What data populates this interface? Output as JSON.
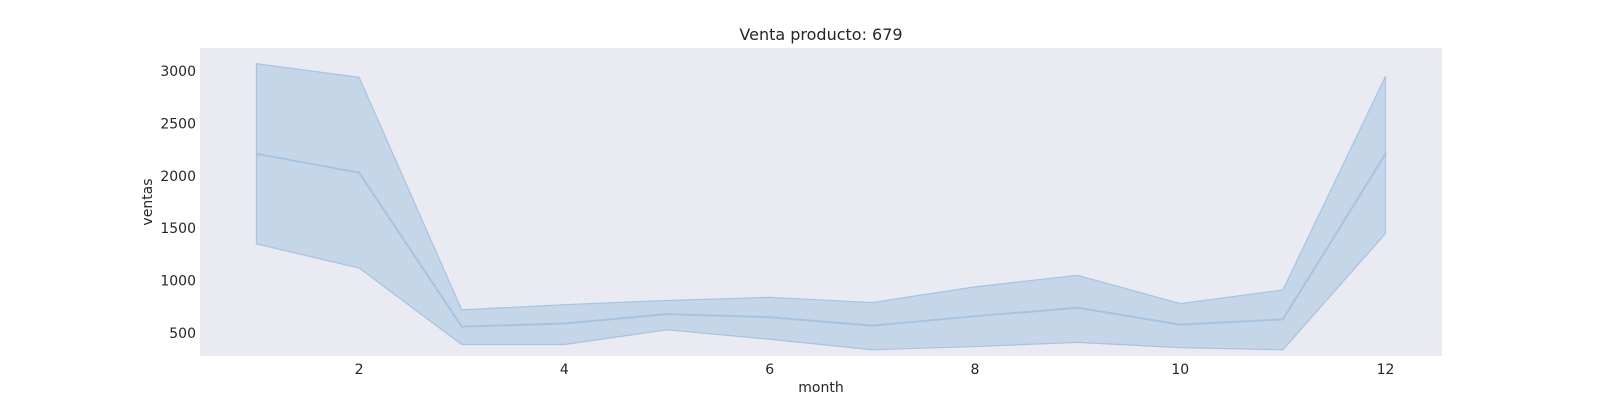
{
  "chart_data": {
    "type": "line",
    "title": "Venta producto: 679",
    "xlabel": "month",
    "ylabel": "ventas",
    "xlim": [
      0.45,
      12.55
    ],
    "ylim": [
      280,
      3220
    ],
    "xticks": [
      2,
      4,
      6,
      8,
      10,
      12
    ],
    "yticks": [
      500,
      1000,
      1500,
      2000,
      2500,
      3000
    ],
    "grid": false,
    "legend": "none",
    "series": [
      {
        "x": [
          1,
          2,
          3,
          4,
          5,
          6,
          7,
          8,
          9,
          10,
          11,
          12
        ],
        "values": [
          2210,
          2030,
          560,
          590,
          680,
          650,
          570,
          660,
          740,
          580,
          630,
          2210
        ],
        "ci_lower": [
          1350,
          1120,
          390,
          390,
          530,
          440,
          340,
          370,
          410,
          360,
          340,
          1450
        ],
        "ci_upper": [
          3070,
          2940,
          720,
          770,
          810,
          840,
          790,
          940,
          1050,
          780,
          910,
          2950
        ]
      }
    ]
  },
  "colors": {
    "background": "#eaeaf2",
    "line": "#a6c4e0",
    "band": "#a6c4e0"
  }
}
